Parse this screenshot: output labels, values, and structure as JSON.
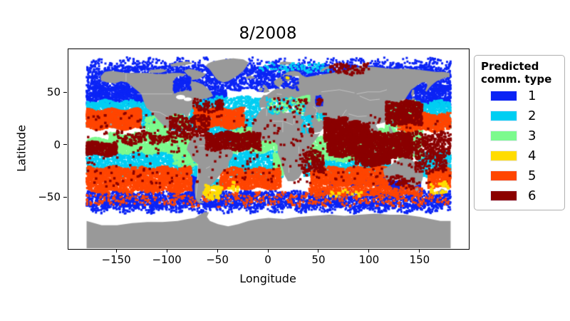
{
  "title": "8/2008",
  "axes": {
    "xlabel": "Longitude",
    "ylabel": "Latitude"
  },
  "legend": {
    "title_line1": "Predicted",
    "title_line2": "comm. type",
    "entries": [
      {
        "label": "1",
        "color": "#0B24F5"
      },
      {
        "label": "2",
        "color": "#00CEF2"
      },
      {
        "label": "3",
        "color": "#7CFA8E"
      },
      {
        "label": "4",
        "color": "#FFDC00"
      },
      {
        "label": "5",
        "color": "#FF4500"
      },
      {
        "label": "6",
        "color": "#8B0000"
      }
    ]
  },
  "chart_data": {
    "type": "scatter",
    "title": "8/2008",
    "xlabel": "Longitude",
    "ylabel": "Latitude",
    "xlim": [
      -198,
      198
    ],
    "ylim": [
      -98.6,
      91.6
    ],
    "xticks": [
      {
        "v": -150,
        "label": "−150"
      },
      {
        "v": -100,
        "label": "−100"
      },
      {
        "v": -50,
        "label": "−50"
      },
      {
        "v": 0,
        "label": "0"
      },
      {
        "v": 50,
        "label": "50"
      },
      {
        "v": 100,
        "label": "100"
      },
      {
        "v": 150,
        "label": "150"
      }
    ],
    "yticks": [
      {
        "v": 50,
        "label": "50"
      },
      {
        "v": 0,
        "label": "0"
      },
      {
        "v": -50,
        "label": "−50"
      }
    ],
    "legend_title": "Predicted comm. type",
    "classes": [
      {
        "id": 1,
        "color": "#0B24F5"
      },
      {
        "id": 2,
        "color": "#00CEF2"
      },
      {
        "id": 3,
        "color": "#7CFA8E"
      },
      {
        "id": 4,
        "color": "#FFDC00"
      },
      {
        "id": 5,
        "color": "#FF4500"
      },
      {
        "id": 6,
        "color": "#8B0000"
      }
    ],
    "map": {
      "land_color": "#999999",
      "country_border_color": "#CBCBCB",
      "ocean_color": "#FFFFFF"
    },
    "regions": [
      {
        "name": "arctic-subpolar-blue",
        "t": 1,
        "ln": [
          -180,
          180
        ],
        "lt": [
          53,
          76
        ],
        "n": 3600
      },
      {
        "name": "arctic-sparse-blue",
        "t": 1,
        "ln": [
          -180,
          180
        ],
        "lt": [
          76,
          82
        ],
        "n": 350,
        "a": 2
      },
      {
        "name": "ne-pacific-blue",
        "t": 1,
        "ln": [
          -180,
          -98
        ],
        "lt": [
          40,
          56
        ],
        "n": 1000
      },
      {
        "name": "nw-pacific-blue",
        "t": 1,
        "ln": [
          135,
          180
        ],
        "lt": [
          38,
          58
        ],
        "n": 650
      },
      {
        "name": "nw-atlantic-blue",
        "t": 1,
        "ln": [
          -75,
          -42
        ],
        "lt": [
          42,
          52
        ],
        "n": 420
      },
      {
        "name": "southern-ocean-blue",
        "t": 1,
        "ln": [
          -180,
          180
        ],
        "lt": [
          -58,
          -44
        ],
        "n": 2600
      },
      {
        "name": "southern-ocean-blue-edge",
        "t": 1,
        "ln": [
          -180,
          180
        ],
        "lt": [
          -63,
          -56
        ],
        "n": 700,
        "a": 2
      },
      {
        "name": "s-indian-blue-tongue",
        "t": 1,
        "ln": [
          60,
          115
        ],
        "lt": [
          -38,
          -30
        ],
        "n": 420
      },
      {
        "name": "s-australia-blue",
        "t": 1,
        "ln": [
          115,
          150
        ],
        "lt": [
          -42,
          -33
        ],
        "n": 350
      },
      {
        "name": "chile-coast-blue",
        "t": 1,
        "ln": [
          -76,
          -70
        ],
        "lt": [
          -45,
          -28
        ],
        "n": 200
      },
      {
        "name": "n-pacific-cyan",
        "t": 2,
        "ln": [
          -180,
          -95
        ],
        "lt": [
          18,
          42
        ],
        "n": 1700
      },
      {
        "name": "nw-pacific-cyan",
        "t": 2,
        "ln": [
          118,
          180
        ],
        "lt": [
          18,
          42
        ],
        "n": 1100
      },
      {
        "name": "n-atlantic-cyan",
        "t": 2,
        "ln": [
          -98,
          -8
        ],
        "lt": [
          14,
          46
        ],
        "n": 1600
      },
      {
        "name": "trop-atlantic-cyan",
        "t": 2,
        "ln": [
          -62,
          -35
        ],
        "lt": [
          4,
          16
        ],
        "n": 180
      },
      {
        "name": "s-pacific-cyan",
        "t": 2,
        "ln": [
          -180,
          -70
        ],
        "lt": [
          -28,
          -6
        ],
        "n": 1500
      },
      {
        "name": "sw-pacific-cyan",
        "t": 2,
        "ln": [
          148,
          180
        ],
        "lt": [
          -30,
          -6
        ],
        "n": 600
      },
      {
        "name": "s-atlantic-cyan",
        "t": 2,
        "ln": [
          -40,
          14
        ],
        "lt": [
          -30,
          -6
        ],
        "n": 750
      },
      {
        "name": "s-indian-cyan",
        "t": 2,
        "ln": [
          35,
          120
        ],
        "lt": [
          -28,
          -8
        ],
        "n": 1200
      },
      {
        "name": "argentine-cyan",
        "t": 2,
        "ln": [
          -58,
          -44
        ],
        "lt": [
          -41,
          -33
        ],
        "n": 130
      },
      {
        "name": "arctic-cyan-mix",
        "t": 2,
        "ln": [
          -10,
          60
        ],
        "lt": [
          70,
          78
        ],
        "n": 90
      },
      {
        "name": "eq-pacific-green",
        "t": 3,
        "ln": [
          -158,
          -76
        ],
        "lt": [
          -7,
          11
        ],
        "n": 1500
      },
      {
        "name": "eq-pacific-west-green",
        "t": 3,
        "ln": [
          -180,
          -158
        ],
        "lt": [
          -6,
          6
        ],
        "n": 280
      },
      {
        "name": "eq-atlantic-green",
        "t": 3,
        "ln": [
          -35,
          13
        ],
        "lt": [
          -6,
          16
        ],
        "n": 850
      },
      {
        "name": "benguela-green",
        "t": 3,
        "ln": [
          5,
          15
        ],
        "lt": [
          -28,
          -6
        ],
        "n": 260
      },
      {
        "name": "eq-indian-green",
        "t": 3,
        "ln": [
          38,
          102
        ],
        "lt": [
          -15,
          9
        ],
        "n": 1100
      },
      {
        "name": "seasia-green",
        "t": 3,
        "ln": [
          100,
          152
        ],
        "lt": [
          -12,
          16
        ],
        "n": 800
      },
      {
        "name": "nw-pacific-coastal-green",
        "t": 3,
        "ln": [
          116,
          146
        ],
        "lt": [
          16,
          42
        ],
        "n": 520
      },
      {
        "name": "peru-green",
        "t": 3,
        "ln": [
          -94,
          -70
        ],
        "lt": [
          -20,
          3
        ],
        "n": 380
      },
      {
        "name": "mexico-west-green",
        "t": 3,
        "ln": [
          -122,
          -98
        ],
        "lt": [
          8,
          28
        ],
        "n": 300
      },
      {
        "name": "gulf-mexico-green",
        "t": 3,
        "ln": [
          -98,
          -80
        ],
        "lt": [
          18,
          31
        ],
        "n": 200
      },
      {
        "name": "n-pacific-gyre-orange",
        "t": 5,
        "ln": [
          -180,
          -126
        ],
        "lt": [
          16,
          34
        ],
        "n": 1200
      },
      {
        "name": "w-pacific-gyre-orange",
        "t": 5,
        "ln": [
          128,
          180
        ],
        "lt": [
          14,
          30
        ],
        "n": 800
      },
      {
        "name": "n-atlantic-gyre-orange",
        "t": 5,
        "ln": [
          -74,
          -24
        ],
        "lt": [
          17,
          35
        ],
        "n": 1000
      },
      {
        "name": "s-pacific-gyre-orange",
        "t": 5,
        "ln": [
          -180,
          -76
        ],
        "lt": [
          -44,
          -21
        ],
        "n": 2400
      },
      {
        "name": "sw-pacific-gyre-orange",
        "t": 5,
        "ln": [
          158,
          180
        ],
        "lt": [
          -40,
          -22
        ],
        "n": 420
      },
      {
        "name": "s-atlantic-gyre-orange",
        "t": 5,
        "ln": [
          -48,
          12
        ],
        "lt": [
          -41,
          -22
        ],
        "n": 1100
      },
      {
        "name": "s-indian-gyre-orange",
        "t": 5,
        "ln": [
          42,
          118
        ],
        "lt": [
          -38,
          -21
        ],
        "n": 1300
      },
      {
        "name": "s-indian-south-orange",
        "t": 5,
        "ln": [
          40,
          152
        ],
        "lt": [
          -47,
          -39
        ],
        "n": 550
      },
      {
        "name": "southern-sparse-orange",
        "t": 5,
        "ln": [
          -180,
          180
        ],
        "lt": [
          -57,
          -46
        ],
        "n": 500,
        "a": 2
      },
      {
        "name": "med-cyan",
        "t": 2,
        "ln": [
          -2,
          36
        ],
        "lt": [
          31,
          45
        ],
        "n": 170,
        "layer": "sea"
      },
      {
        "name": "med-green",
        "t": 3,
        "ln": [
          -2,
          36
        ],
        "lt": [
          31,
          45
        ],
        "n": 60,
        "layer": "sea"
      },
      {
        "name": "med-darkred",
        "t": 6,
        "ln": [
          0,
          36
        ],
        "lt": [
          32,
          44
        ],
        "n": 25,
        "layer": "sea"
      },
      {
        "name": "black-sea-green",
        "t": 3,
        "ln": [
          28,
          41
        ],
        "lt": [
          41,
          46
        ],
        "n": 55,
        "layer": "sea"
      },
      {
        "name": "black-sea-darkred",
        "t": 6,
        "ln": [
          30,
          40
        ],
        "lt": [
          41,
          45
        ],
        "n": 12,
        "layer": "sea"
      },
      {
        "name": "caspian-blue",
        "t": 1,
        "ln": [
          47,
          53
        ],
        "lt": [
          37,
          46
        ],
        "n": 55,
        "layer": "sea"
      },
      {
        "name": "caspian-darkred",
        "t": 6,
        "ln": [
          48,
          53
        ],
        "lt": [
          38,
          45
        ],
        "n": 14,
        "layer": "sea"
      },
      {
        "name": "baltic-blue",
        "t": 1,
        "ln": [
          13,
          29
        ],
        "lt": [
          54,
          65
        ],
        "n": 70,
        "layer": "sea"
      },
      {
        "name": "baltic-yellow",
        "t": 4,
        "ln": [
          18,
          22
        ],
        "lt": [
          62,
          64
        ],
        "n": 2,
        "layer": "sea"
      },
      {
        "name": "hudson-bay-blue",
        "t": 1,
        "ln": [
          -94,
          -77
        ],
        "lt": [
          52,
          64
        ],
        "n": 140,
        "layer": "sea"
      },
      {
        "name": "red-sea-cyan",
        "t": 2,
        "ln": [
          33,
          43
        ],
        "lt": [
          13,
          29
        ],
        "n": 60,
        "layer": "sea"
      },
      {
        "name": "red-sea-darkred",
        "t": 6,
        "ln": [
          40,
          44
        ],
        "lt": [
          11,
          15
        ],
        "n": 15,
        "layer": "sea"
      },
      {
        "name": "persian-gulf-green",
        "t": 3,
        "ln": [
          48,
          56
        ],
        "lt": [
          24,
          30
        ],
        "n": 25,
        "layer": "sea"
      },
      {
        "name": "persian-gulf-cyan",
        "t": 2,
        "ln": [
          48,
          56
        ],
        "lt": [
          25,
          30
        ],
        "n": 20,
        "layer": "sea"
      },
      {
        "name": "arabian-sea-darkred",
        "t": 6,
        "ln": [
          55,
          78
        ],
        "lt": [
          4,
          26
        ],
        "n": 600,
        "layer": "top"
      },
      {
        "name": "bengal-darkred",
        "t": 6,
        "ln": [
          78,
          100
        ],
        "lt": [
          3,
          22
        ],
        "n": 500,
        "layer": "top"
      },
      {
        "name": "eq-indian-darkred",
        "t": 6,
        "ln": [
          58,
          102
        ],
        "lt": [
          -10,
          4
        ],
        "n": 550,
        "layer": "top"
      },
      {
        "name": "indonesia-darkred",
        "t": 6,
        "ln": [
          98,
          142
        ],
        "lt": [
          -12,
          12
        ],
        "n": 750,
        "layer": "top"
      },
      {
        "name": "kuroshio-darkred",
        "t": 6,
        "ln": [
          116,
          152
        ],
        "lt": [
          20,
          42
        ],
        "n": 550,
        "layer": "top"
      },
      {
        "name": "se-indian-darkred",
        "t": 6,
        "ln": [
          86,
          120
        ],
        "lt": [
          -19,
          -9
        ],
        "n": 320,
        "layer": "top"
      },
      {
        "name": "trop-atlantic-darkred",
        "t": 6,
        "ln": [
          -62,
          -8
        ],
        "lt": [
          -4,
          12
        ],
        "n": 600,
        "layer": "top"
      },
      {
        "name": "caribbean-darkred",
        "t": 6,
        "ln": [
          -98,
          -58
        ],
        "lt": [
          8,
          28
        ],
        "n": 260,
        "layer": "top"
      },
      {
        "name": "w-pacific-eq-darkred",
        "t": 6,
        "ln": [
          140,
          180
        ],
        "lt": [
          -8,
          12
        ],
        "n": 260,
        "layer": "top"
      },
      {
        "name": "dateline-eq-darkred",
        "t": 6,
        "ln": [
          -180,
          -150
        ],
        "lt": [
          -9,
          3
        ],
        "n": 300,
        "layer": "top"
      },
      {
        "name": "itcz-pacific-darkred",
        "t": 6,
        "ln": [
          -150,
          -90
        ],
        "lt": [
          2,
          12
        ],
        "n": 160,
        "layer": "top",
        "a": 2
      },
      {
        "name": "mozambique-darkred",
        "t": 6,
        "ln": [
          33,
          55
        ],
        "lt": [
          -26,
          -6
        ],
        "n": 170,
        "layer": "top"
      },
      {
        "name": "coral-sea-darkred",
        "t": 6,
        "ln": [
          145,
          176
        ],
        "lt": [
          -26,
          -8
        ],
        "n": 150,
        "layer": "top"
      },
      {
        "name": "gulf-stream-darkred",
        "t": 6,
        "ln": [
          -75,
          -45
        ],
        "lt": [
          32,
          44
        ],
        "n": 90,
        "layer": "top",
        "a": 2
      },
      {
        "name": "kara-sea-darkred",
        "t": 6,
        "ln": [
          60,
          100
        ],
        "lt": [
          68,
          77
        ],
        "n": 90,
        "layer": "top"
      },
      {
        "name": "tasman-darkred",
        "t": 6,
        "ln": [
          118,
          145
        ],
        "lt": [
          -40,
          -30
        ],
        "n": 60,
        "layer": "top",
        "a": 2
      },
      {
        "name": "global-sparse-darkred",
        "t": 6,
        "ln": [
          -180,
          180
        ],
        "lt": [
          -38,
          30
        ],
        "n": 420,
        "layer": "top",
        "a": 2
      },
      {
        "name": "patagonia-yellow",
        "t": 4,
        "ln": [
          -64,
          -46
        ],
        "lt": [
          -50,
          -38
        ],
        "n": 60,
        "layer": "top"
      },
      {
        "name": "nz-yellow",
        "t": 4,
        "ln": [
          160,
          178
        ],
        "lt": [
          -48,
          -36
        ],
        "n": 25,
        "layer": "top"
      },
      {
        "name": "s-atlantic-yellow",
        "t": 4,
        "ln": [
          -55,
          -30
        ],
        "lt": [
          -44,
          -36
        ],
        "n": 18,
        "layer": "top"
      },
      {
        "name": "s-indian-yellow",
        "t": 4,
        "ln": [
          60,
          100
        ],
        "lt": [
          -48,
          -42
        ],
        "n": 14,
        "layer": "top"
      }
    ]
  }
}
